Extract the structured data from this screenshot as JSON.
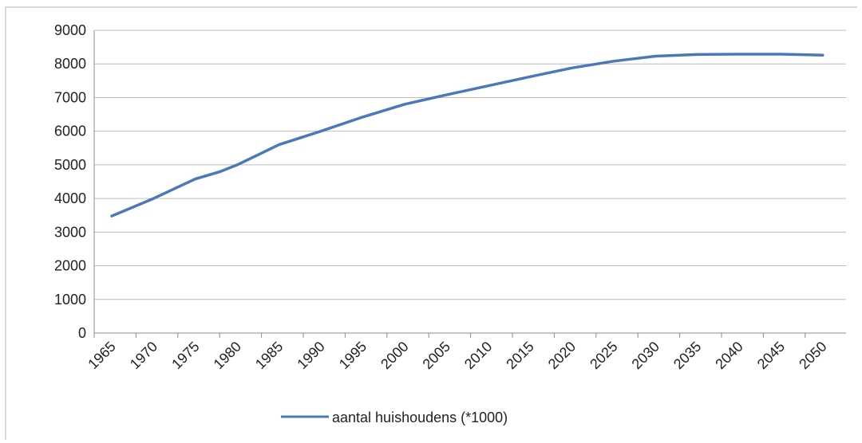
{
  "chart_data": {
    "type": "line",
    "title": "",
    "xlabel": "",
    "ylabel": "",
    "ylim": [
      0,
      9000
    ],
    "y_ticks": [
      0,
      1000,
      2000,
      3000,
      4000,
      5000,
      6000,
      7000,
      8000,
      9000
    ],
    "categories": [
      "1965",
      "1970",
      "1975",
      "1980",
      "1985",
      "1990",
      "1995",
      "2000",
      "2005",
      "2010",
      "2015",
      "2020",
      "2025",
      "2030",
      "2035",
      "2040",
      "2045",
      "2050"
    ],
    "grid": "horizontal",
    "legend_position": "bottom",
    "series": [
      {
        "name": "aantal huishoudens (*1000)",
        "color": "#4a78b8",
        "points": [
          {
            "x": 1965,
            "y": 3480
          },
          {
            "x": 1966,
            "y": 3580
          },
          {
            "x": 1970,
            "y": 4000
          },
          {
            "x": 1975,
            "y": 4580
          },
          {
            "x": 1978,
            "y": 4800
          },
          {
            "x": 1980,
            "y": 5000
          },
          {
            "x": 1985,
            "y": 5600
          },
          {
            "x": 1990,
            "y": 6000
          },
          {
            "x": 1995,
            "y": 6420
          },
          {
            "x": 2000,
            "y": 6800
          },
          {
            "x": 2005,
            "y": 7080
          },
          {
            "x": 2010,
            "y": 7350
          },
          {
            "x": 2015,
            "y": 7620
          },
          {
            "x": 2020,
            "y": 7880
          },
          {
            "x": 2025,
            "y": 8080
          },
          {
            "x": 2030,
            "y": 8230
          },
          {
            "x": 2035,
            "y": 8280
          },
          {
            "x": 2040,
            "y": 8290
          },
          {
            "x": 2045,
            "y": 8290
          },
          {
            "x": 2050,
            "y": 8260
          }
        ]
      }
    ]
  }
}
